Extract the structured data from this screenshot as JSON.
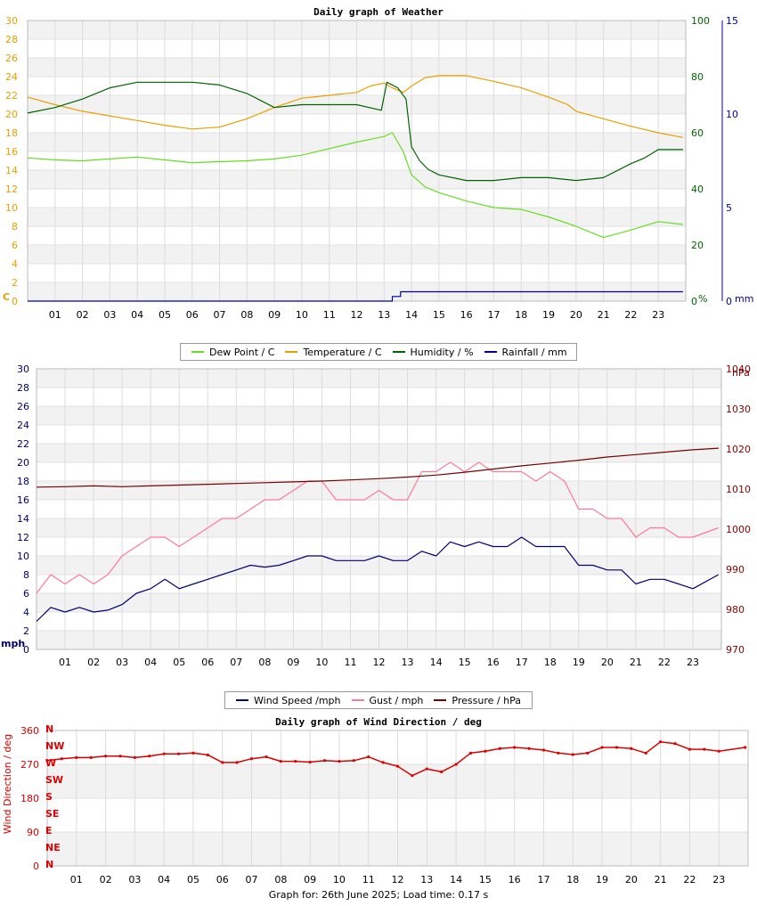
{
  "footer": "Graph for: 26th June 2025; Load time: 0.17 s",
  "chart_data": [
    {
      "type": "line",
      "title": "Daily graph of Weather",
      "x_ticks": [
        "01",
        "02",
        "03",
        "04",
        "05",
        "06",
        "07",
        "08",
        "09",
        "10",
        "11",
        "12",
        "13",
        "14",
        "15",
        "16",
        "17",
        "18",
        "19",
        "20",
        "21",
        "22",
        "23"
      ],
      "x_range": [
        0,
        24
      ],
      "axes": {
        "temp": {
          "label": "C",
          "range": [
            0,
            30
          ],
          "ticks": [
            "0",
            "2",
            "4",
            "6",
            "8",
            "10",
            "12",
            "14",
            "16",
            "18",
            "20",
            "22",
            "24",
            "26",
            "28",
            "30"
          ],
          "color": "#e8a000"
        },
        "humidity": {
          "label": "%",
          "range": [
            0,
            100
          ],
          "ticks": [
            "0",
            "20",
            "40",
            "60",
            "80",
            "100"
          ],
          "color": "#006400"
        },
        "rain": {
          "label": "mm",
          "range": [
            0,
            15
          ],
          "ticks": [
            "0",
            "5",
            "10",
            "15"
          ],
          "color": "#000099"
        }
      },
      "series": [
        {
          "name": "Dew Point / C",
          "axis": "temp",
          "color": "#66dd22",
          "x": [
            0,
            1,
            2,
            3,
            4,
            5,
            6,
            7,
            8,
            9,
            10,
            11,
            12,
            13,
            13.3,
            13.7,
            14,
            14.5,
            15,
            16,
            17,
            18,
            19,
            20,
            21,
            22,
            23,
            23.9
          ],
          "y": [
            15.3,
            15.1,
            15.0,
            15.2,
            15.4,
            15.1,
            14.8,
            14.9,
            15.0,
            15.2,
            15.6,
            16.3,
            17.0,
            17.6,
            18.0,
            16.0,
            13.5,
            12.2,
            11.6,
            10.7,
            10.0,
            9.8,
            9.0,
            8.0,
            6.8,
            7.6,
            8.5,
            8.2
          ]
        },
        {
          "name": "Temperature / C",
          "axis": "temp",
          "color": "#e8a000",
          "x": [
            0,
            1,
            2,
            3,
            4,
            5,
            6,
            7,
            8,
            9,
            10,
            11,
            12,
            12.5,
            13,
            13.3,
            13.7,
            14,
            14.5,
            15,
            16,
            17,
            18,
            19,
            19.7,
            20,
            21,
            22,
            23,
            23.9
          ],
          "y": [
            21.8,
            21.0,
            20.3,
            19.8,
            19.3,
            18.8,
            18.4,
            18.6,
            19.5,
            20.7,
            21.7,
            22.0,
            22.3,
            23.0,
            23.3,
            22.8,
            22.3,
            23.0,
            23.9,
            24.1,
            24.1,
            23.5,
            22.8,
            21.8,
            21.0,
            20.3,
            19.5,
            18.7,
            18.0,
            17.5
          ]
        },
        {
          "name": "Humidity / %",
          "axis": "humidity",
          "color": "#006400",
          "x": [
            0,
            1,
            2,
            3,
            4,
            5,
            6,
            7,
            8,
            9,
            10,
            11,
            12,
            12.9,
            13.1,
            13.5,
            13.8,
            14,
            14.3,
            14.6,
            15,
            16,
            17,
            18,
            19,
            20,
            21,
            22,
            22.5,
            23,
            23.9
          ],
          "y": [
            67,
            69,
            72,
            76,
            78,
            78,
            78,
            77,
            74,
            69,
            70,
            70,
            70,
            68,
            78,
            76,
            72,
            55,
            50,
            47,
            45,
            43,
            43,
            44,
            44,
            43,
            44,
            49,
            51,
            54,
            54
          ]
        },
        {
          "name": "Rainfall / mm",
          "axis": "rain",
          "color": "#000099",
          "x": [
            0,
            13.3,
            13.3,
            13.6,
            13.6,
            23.9
          ],
          "y": [
            0,
            0,
            0.25,
            0.25,
            0.5,
            0.5
          ]
        }
      ],
      "legend": "bottom"
    },
    {
      "type": "line",
      "title": "",
      "x_ticks": [
        "01",
        "02",
        "03",
        "04",
        "05",
        "06",
        "07",
        "08",
        "09",
        "10",
        "11",
        "12",
        "13",
        "14",
        "15",
        "16",
        "17",
        "18",
        "19",
        "20",
        "21",
        "22",
        "23"
      ],
      "x_range": [
        0,
        24
      ],
      "axes": {
        "speed": {
          "label": "mph",
          "range": [
            0,
            30
          ],
          "ticks": [
            "0",
            "2",
            "4",
            "6",
            "8",
            "10",
            "12",
            "14",
            "16",
            "18",
            "20",
            "22",
            "24",
            "26",
            "28",
            "30"
          ],
          "color": "#000066"
        },
        "pressure": {
          "label": "hPa",
          "range": [
            970,
            1040
          ],
          "ticks": [
            "970",
            "980",
            "990",
            "1000",
            "1010",
            "1020",
            "1030",
            "1040"
          ],
          "color": "#880000"
        }
      },
      "series": [
        {
          "name": "Wind Speed /mph",
          "axis": "speed",
          "color": "#000077",
          "x": [
            0,
            0.5,
            1,
            1.5,
            2,
            2.5,
            3,
            3.5,
            4,
            4.5,
            5,
            5.5,
            6,
            6.5,
            7,
            7.5,
            8,
            8.5,
            9,
            9.5,
            10,
            10.5,
            11,
            11.5,
            12,
            12.5,
            13,
            13.5,
            14,
            14.5,
            15,
            15.5,
            16,
            16.5,
            17,
            17.5,
            18,
            18.5,
            19,
            19.5,
            20,
            20.5,
            21,
            21.5,
            22,
            22.5,
            23,
            23.9
          ],
          "y": [
            3.0,
            4.5,
            4.0,
            4.5,
            4.0,
            4.2,
            4.8,
            6.0,
            6.5,
            7.5,
            6.5,
            7.0,
            7.5,
            8.0,
            8.5,
            9.0,
            8.8,
            9.0,
            9.5,
            10.0,
            10.0,
            9.5,
            9.5,
            9.5,
            10.0,
            9.5,
            9.5,
            10.5,
            10.0,
            11.5,
            11.0,
            11.5,
            11.0,
            11.0,
            12.0,
            11.0,
            11.0,
            11.0,
            9.0,
            9.0,
            8.5,
            8.5,
            7.0,
            7.5,
            7.5,
            7.0,
            6.5,
            8.0
          ]
        },
        {
          "name": "Gust / mph",
          "axis": "speed",
          "color": "#ff7799",
          "x": [
            0,
            0.5,
            1,
            1.5,
            2,
            2.5,
            3,
            3.5,
            4,
            4.5,
            5,
            5.5,
            6,
            6.5,
            7,
            7.5,
            8,
            8.5,
            9,
            9.5,
            10,
            10.5,
            11,
            11.5,
            12,
            12.5,
            13,
            13.5,
            14,
            14.5,
            15,
            15.5,
            16,
            16.5,
            17,
            17.5,
            18,
            18.5,
            19,
            19.5,
            20,
            20.5,
            21,
            21.5,
            22,
            22.5,
            23,
            23.9
          ],
          "y": [
            6,
            8,
            7,
            8,
            7,
            8,
            10,
            11,
            12,
            12,
            11,
            12,
            13,
            14,
            14,
            15,
            16,
            16,
            17,
            18,
            18,
            16,
            16,
            16,
            17,
            16,
            16,
            19,
            19,
            20,
            19,
            20,
            19,
            19,
            19,
            18,
            19,
            18,
            15,
            15,
            14,
            14,
            12,
            13,
            13,
            12,
            12,
            13
          ]
        },
        {
          "name": "Pressure / hPa",
          "axis": "pressure",
          "color": "#770000",
          "x": [
            0,
            1,
            2,
            3,
            4,
            5,
            6,
            7,
            8,
            9,
            10,
            11,
            12,
            13,
            14,
            15,
            16,
            17,
            18,
            19,
            20,
            21,
            22,
            23,
            23.9
          ],
          "y": [
            1010.5,
            1010.6,
            1010.8,
            1010.6,
            1010.8,
            1011.0,
            1011.2,
            1011.4,
            1011.6,
            1011.8,
            1012.0,
            1012.3,
            1012.6,
            1013.0,
            1013.5,
            1014.2,
            1015.0,
            1015.8,
            1016.5,
            1017.2,
            1018.0,
            1018.6,
            1019.2,
            1019.8,
            1020.2
          ]
        }
      ],
      "legend": "bottom"
    },
    {
      "type": "scatter",
      "title": "Daily graph of Wind Direction / deg",
      "ylabel": "Wind Direction / deg",
      "x_ticks": [
        "01",
        "02",
        "03",
        "04",
        "05",
        "06",
        "07",
        "08",
        "09",
        "10",
        "11",
        "12",
        "13",
        "14",
        "15",
        "16",
        "17",
        "18",
        "19",
        "20",
        "21",
        "22",
        "23"
      ],
      "x_range": [
        0,
        24
      ],
      "y_range": [
        0,
        360
      ],
      "y_ticks": [
        "0",
        "90",
        "180",
        "270",
        "360"
      ],
      "compass_labels": [
        "N",
        "NE",
        "E",
        "SE",
        "S",
        "SW",
        "W",
        "NW",
        "N"
      ],
      "series": [
        {
          "name": "",
          "color": "#dd0000",
          "x": [
            0,
            0.5,
            1,
            1.5,
            2,
            2.5,
            3,
            3.5,
            4,
            4.5,
            5,
            5.5,
            6,
            6.5,
            7,
            7.5,
            8,
            8.5,
            9,
            9.5,
            10,
            10.5,
            11,
            11.5,
            12,
            12.5,
            13,
            13.5,
            14,
            14.5,
            15,
            15.5,
            16,
            16.5,
            17,
            17.5,
            18,
            18.5,
            19,
            19.5,
            20,
            20.5,
            21,
            21.5,
            22,
            22.5,
            23,
            23.9
          ],
          "y": [
            280,
            285,
            288,
            288,
            292,
            292,
            288,
            292,
            298,
            298,
            300,
            295,
            275,
            275,
            285,
            290,
            278,
            278,
            276,
            280,
            278,
            280,
            290,
            275,
            265,
            240,
            258,
            250,
            270,
            300,
            305,
            312,
            315,
            312,
            308,
            300,
            296,
            300,
            315,
            315,
            312,
            300,
            330,
            325,
            310,
            310,
            305,
            315
          ]
        }
      ]
    }
  ]
}
